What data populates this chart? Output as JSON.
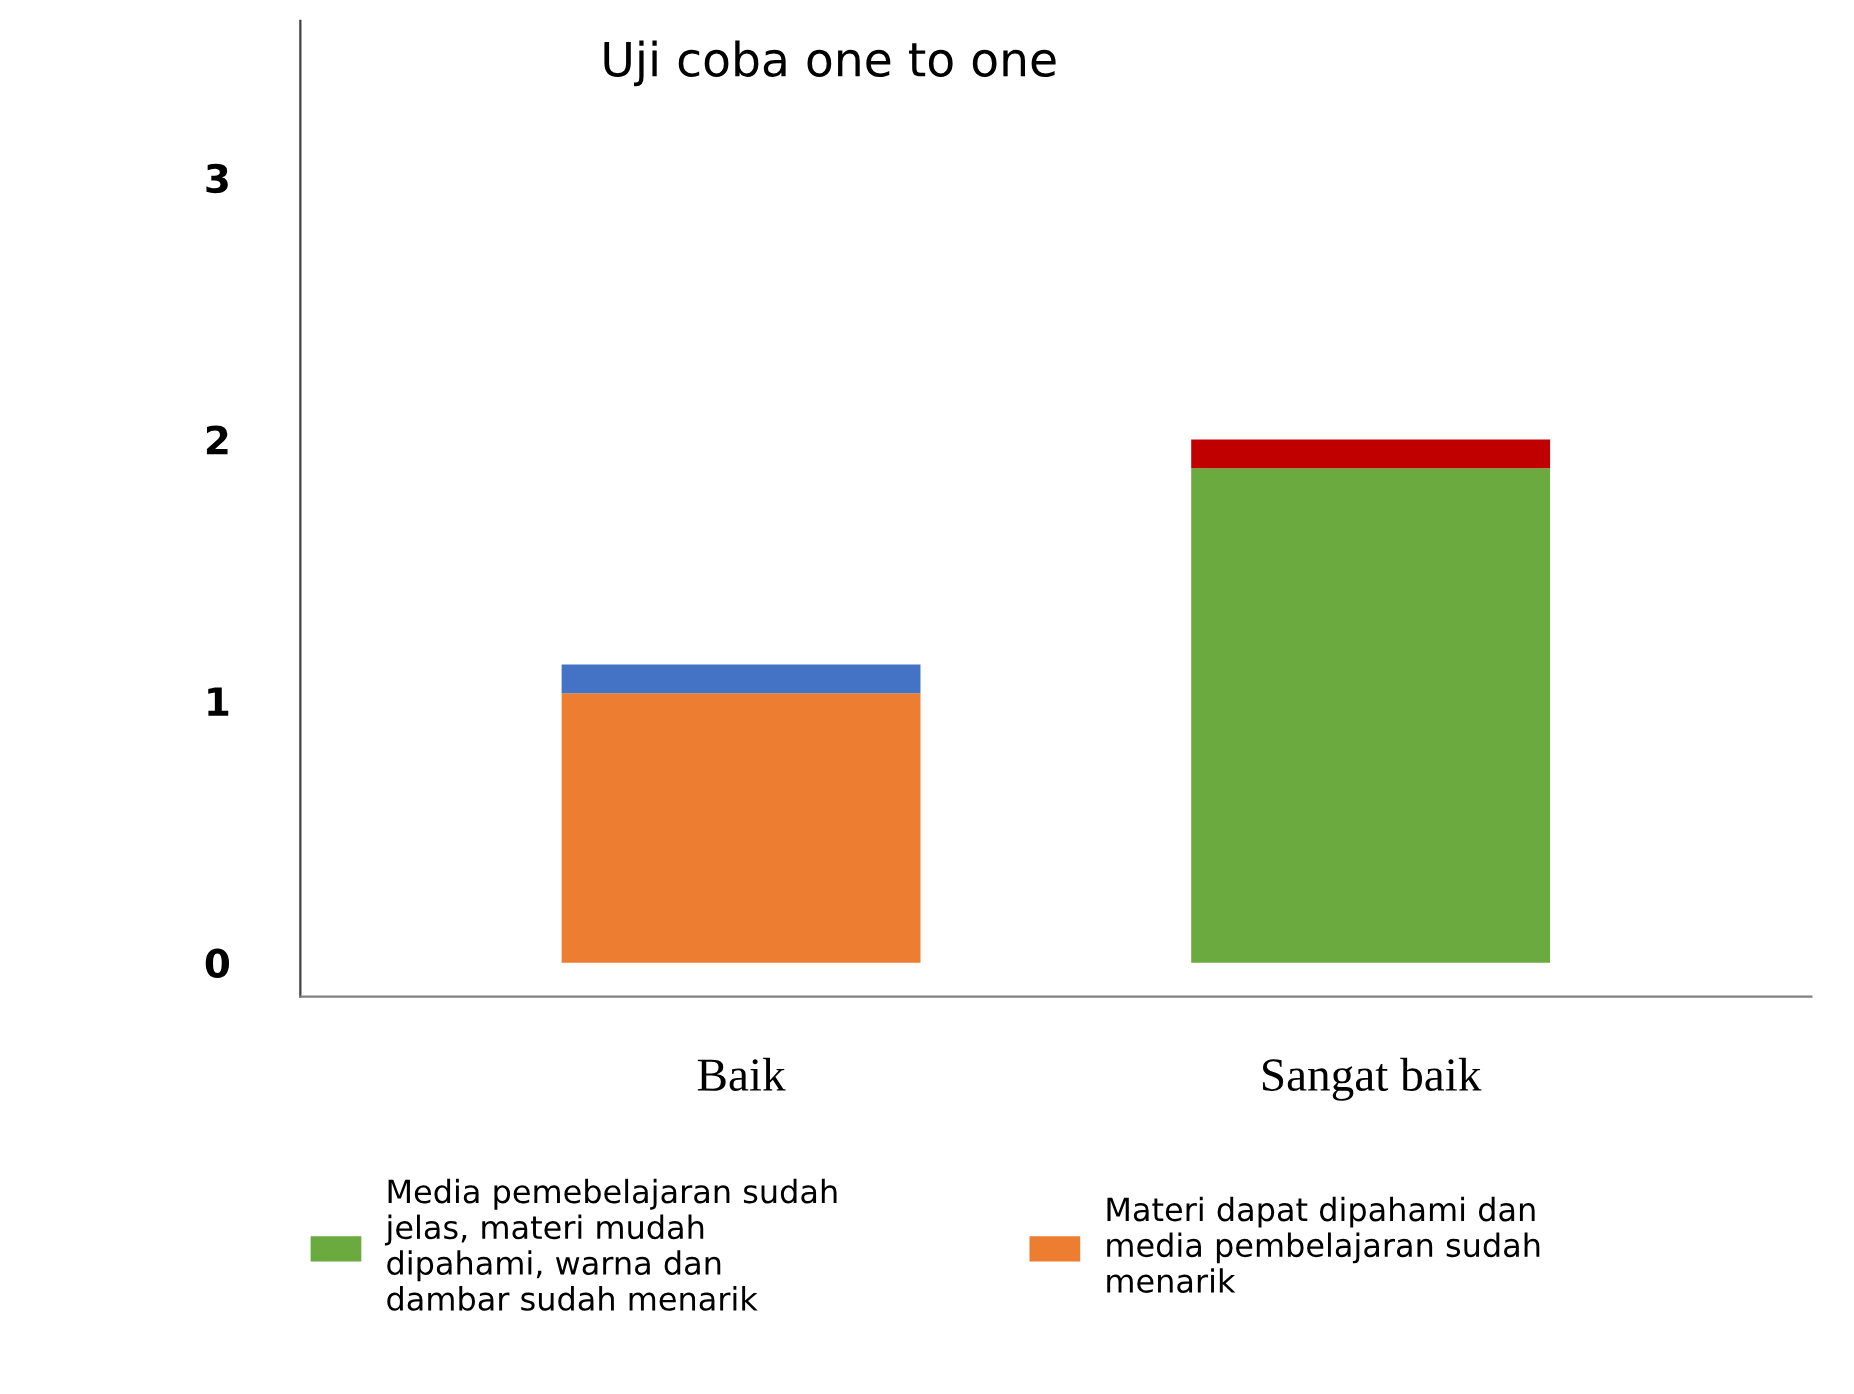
{
  "chart_data": {
    "type": "bar",
    "title": "Uji coba one to one",
    "stacked": true,
    "categories": [
      "Baik",
      "Sangat baik"
    ],
    "series": [
      {
        "name": "Materi dapat dipahami dan\nmedia pembelajaran sudah\nmenarik",
        "color": "#ed7d31",
        "values": [
          1.03,
          null
        ]
      },
      {
        "name": "Media pemebelajaran sudah\njelas, materi mudah\ndipahami, warna dan\ndambar sudah menarik",
        "color": "#6aaa3f",
        "values": [
          null,
          1.89
        ]
      },
      {
        "color": "#4472c4",
        "values": [
          0.11,
          null
        ]
      },
      {
        "color": "#c00000",
        "values": [
          null,
          0.11
        ]
      }
    ],
    "ylim": [
      -0.13,
      3.6
    ],
    "yticks": [
      0,
      1,
      2,
      3
    ],
    "grid": false,
    "legend": "bottom"
  }
}
